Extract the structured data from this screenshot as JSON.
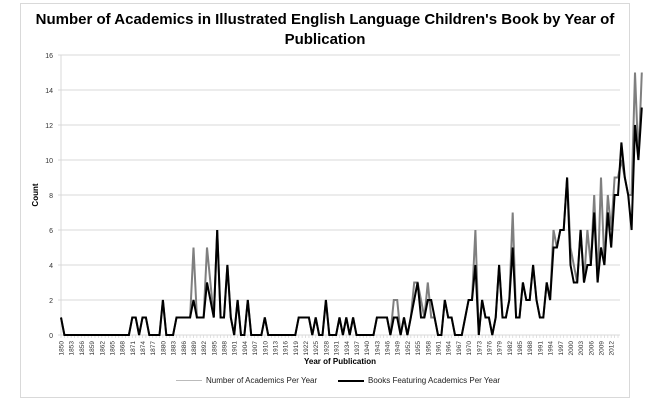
{
  "chart_data": {
    "type": "line",
    "title": "Number of Academics in Illustrated English Language Children's Book by Year of Publication",
    "xlabel": "Year of Publication",
    "ylabel": "Count",
    "ylim": [
      0,
      16
    ],
    "yticks": [
      0,
      2,
      4,
      6,
      8,
      10,
      12,
      14,
      16
    ],
    "grid": true,
    "legend_position": "bottom",
    "x_start": 1850,
    "x_end": 2014,
    "xtick_labels": [
      "1850",
      "1853",
      "1856",
      "1859",
      "1862",
      "1865",
      "1868",
      "1871",
      "1874",
      "1877",
      "1880",
      "1883",
      "1886",
      "1889",
      "1892",
      "1895",
      "1898",
      "1901",
      "1904",
      "1907",
      "1910",
      "1913",
      "1916",
      "1919",
      "1922",
      "1925",
      "1928",
      "1931",
      "1934",
      "1937",
      "1940",
      "1943",
      "1946",
      "1949",
      "1952",
      "1955",
      "1958",
      "1961",
      "1964",
      "1967",
      "1970",
      "1973",
      "1976",
      "1979",
      "1982",
      "1985",
      "1988",
      "1991",
      "1994",
      "1997",
      "2000",
      "2003",
      "2006",
      "2009",
      "2012"
    ],
    "series": [
      {
        "name": "Number of Academics Per Year",
        "color": "#7f7f7f",
        "values": [
          1,
          0,
          0,
          0,
          0,
          0,
          0,
          0,
          0,
          0,
          0,
          0,
          0,
          0,
          0,
          0,
          0,
          0,
          0,
          0,
          0,
          1,
          1,
          0,
          1,
          1,
          0,
          0,
          0,
          0,
          2,
          0,
          0,
          0,
          1,
          1,
          1,
          1,
          1,
          5,
          1,
          1,
          1,
          5,
          3,
          1,
          6,
          1,
          1,
          4,
          1,
          0,
          2,
          0,
          0,
          2,
          0,
          0,
          0,
          0,
          1,
          0,
          0,
          0,
          0,
          0,
          0,
          0,
          0,
          0,
          1,
          1,
          1,
          1,
          0,
          1,
          0,
          0,
          2,
          0,
          0,
          0,
          1,
          0,
          1,
          0,
          1,
          0,
          0,
          0,
          0,
          0,
          0,
          1,
          1,
          1,
          1,
          0,
          2,
          2,
          0,
          1,
          0,
          1,
          3,
          3,
          2,
          1,
          3,
          1,
          1,
          0,
          0,
          2,
          1,
          1,
          0,
          0,
          0,
          1,
          2,
          2,
          6,
          0,
          2,
          1,
          1,
          0,
          1,
          4,
          1,
          1,
          2,
          7,
          1,
          1,
          3,
          2,
          2,
          4,
          2,
          1,
          1,
          3,
          2,
          6,
          5,
          6,
          6,
          9,
          5,
          4,
          3,
          6,
          3,
          6,
          4,
          8,
          3,
          9,
          4,
          8,
          6,
          9,
          9,
          10,
          9,
          8,
          8,
          15,
          10,
          15
        ]
      },
      {
        "name": "Books Featuring Academics Per Year",
        "color": "#000000",
        "values": [
          1,
          0,
          0,
          0,
          0,
          0,
          0,
          0,
          0,
          0,
          0,
          0,
          0,
          0,
          0,
          0,
          0,
          0,
          0,
          0,
          0,
          1,
          1,
          0,
          1,
          1,
          0,
          0,
          0,
          0,
          2,
          0,
          0,
          0,
          1,
          1,
          1,
          1,
          1,
          2,
          1,
          1,
          1,
          3,
          2,
          1,
          6,
          1,
          1,
          4,
          1,
          0,
          2,
          0,
          0,
          2,
          0,
          0,
          0,
          0,
          1,
          0,
          0,
          0,
          0,
          0,
          0,
          0,
          0,
          0,
          1,
          1,
          1,
          1,
          0,
          1,
          0,
          0,
          2,
          0,
          0,
          0,
          1,
          0,
          1,
          0,
          1,
          0,
          0,
          0,
          0,
          0,
          0,
          1,
          1,
          1,
          1,
          0,
          1,
          1,
          0,
          1,
          0,
          1,
          2,
          3,
          1,
          1,
          2,
          2,
          1,
          0,
          0,
          2,
          1,
          1,
          0,
          0,
          0,
          1,
          2,
          2,
          4,
          0,
          2,
          1,
          1,
          0,
          1,
          4,
          1,
          1,
          2,
          5,
          1,
          1,
          3,
          2,
          2,
          4,
          2,
          1,
          1,
          3,
          2,
          5,
          5,
          6,
          6,
          9,
          4,
          3,
          3,
          6,
          3,
          4,
          4,
          7,
          3,
          5,
          4,
          7,
          5,
          8,
          8,
          11,
          9,
          8,
          6,
          12,
          10,
          13
        ]
      }
    ]
  }
}
